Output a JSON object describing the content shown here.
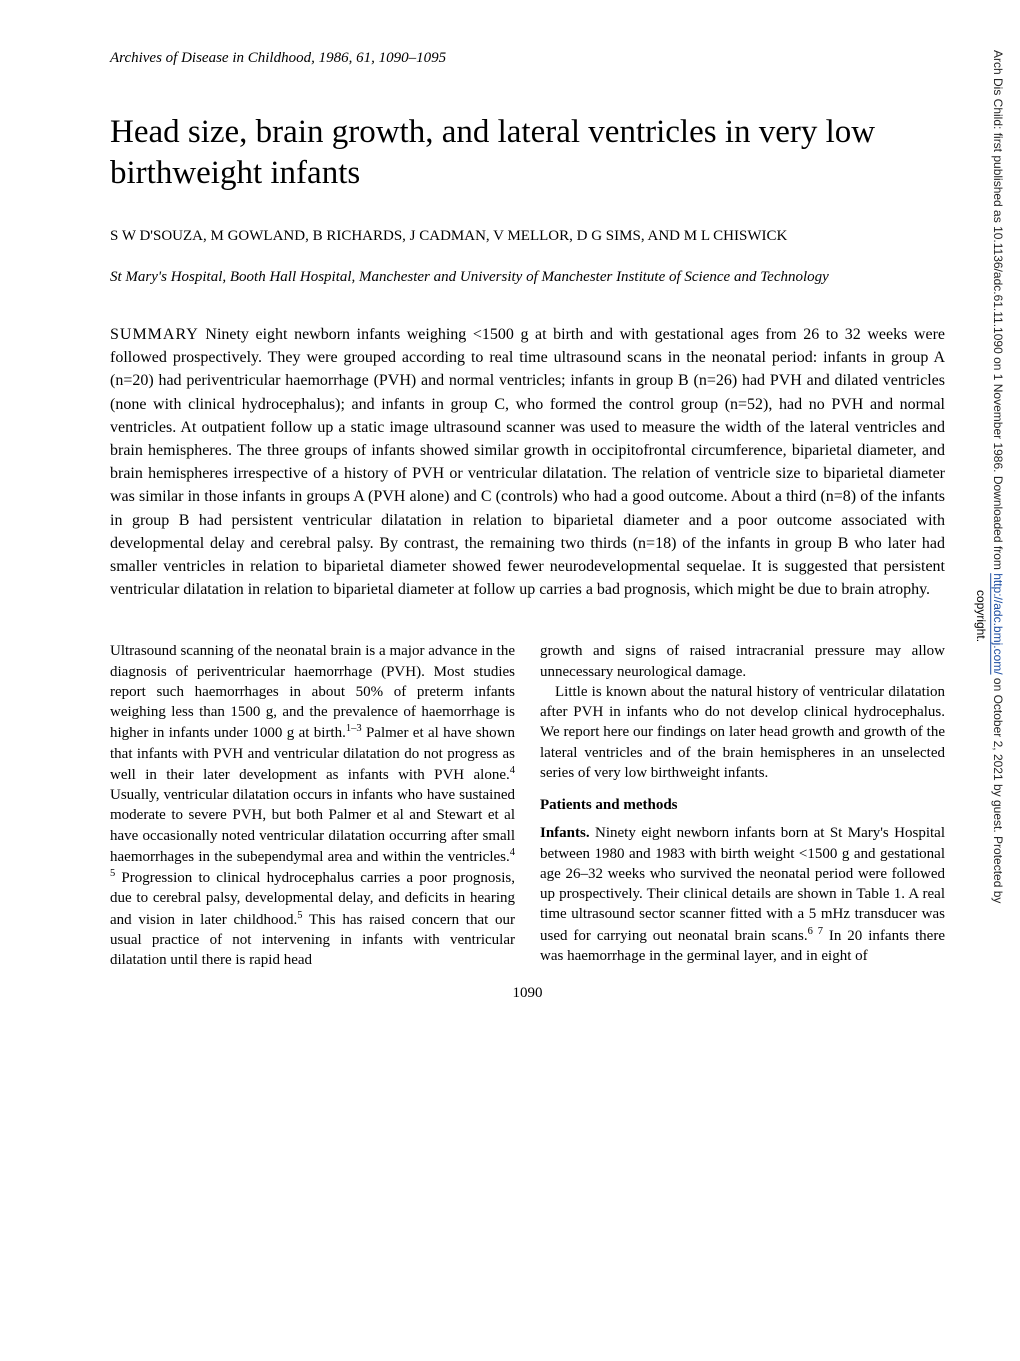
{
  "journal": {
    "citation": "Archives of Disease in Childhood, 1986, 61, 1090–1095"
  },
  "article": {
    "title": "Head size, brain growth, and lateral ventricles in very low birthweight infants",
    "authors": "S W D'SOUZA, M GOWLAND, B RICHARDS, J CADMAN, V MELLOR, D G SIMS, AND M L CHISWICK",
    "affiliation": "St Mary's Hospital, Booth Hall Hospital, Manchester and University of Manchester Institute of Science and Technology"
  },
  "summary": {
    "label": "SUMMARY",
    "text": " Ninety eight newborn infants weighing <1500 g at birth and with gestational ages from 26 to 32 weeks were followed prospectively. They were grouped according to real time ultrasound scans in the neonatal period: infants in group A (n=20) had periventricular haemorrhage (PVH) and normal ventricles; infants in group B (n=26) had PVH and dilated ventricles (none with clinical hydrocephalus); and infants in group C, who formed the control group (n=52), had no PVH and normal ventricles. At outpatient follow up a static image ultrasound scanner was used to measure the width of the lateral ventricles and brain hemispheres. The three groups of infants showed similar growth in occipitofrontal circumference, biparietal diameter, and brain hemispheres irrespective of a history of PVH or ventricular dilatation. The relation of ventricle size to biparietal diameter was similar in those infants in groups A (PVH alone) and C (controls) who had a good outcome. About a third (n=8) of the infants in group B had persistent ventricular dilatation in relation to biparietal diameter and a poor outcome associated with developmental delay and cerebral palsy. By contrast, the remaining two thirds (n=18) of the infants in group B who later had smaller ventricles in relation to biparietal diameter showed fewer neurodevelopmental sequelae. It is suggested that persistent ventricular dilatation in relation to biparietal diameter at follow up carries a bad prognosis, which might be due to brain atrophy."
  },
  "body": {
    "left_col": {
      "p1_pre": "Ultrasound scanning of the neonatal brain is a major advance in the diagnosis of periventricular haemorrhage (PVH). Most studies report such haemorrhages in about 50% of preterm infants weighing less than 1500 g, and the prevalence of haemorrhage is higher in infants under 1000 g at birth.",
      "p1_ref1": "1–3",
      "p1_mid1": " Palmer et al have shown that infants with PVH and ventricular dilatation do not progress as well in their later development as infants with PVH alone.",
      "p1_ref2": "4",
      "p1_mid2": " Usually, ventricular dilatation occurs in infants who have sustained moderate to severe PVH, but both Palmer et al and Stewart et al have occasionally noted ventricular dilatation occurring after small haemorrhages in the subependymal area and within the ventricles.",
      "p1_ref3": "4 5",
      "p1_mid3": " Progression to clinical hydrocephalus carries a poor prognosis, due to cerebral palsy, developmental delay, and deficits in hearing and vision in later childhood.",
      "p1_ref4": "5",
      "p1_post": " This has raised concern that our usual practice of not intervening in infants with ventricular dilatation until there is rapid head"
    },
    "right_col": {
      "p1": "growth and signs of raised intracranial pressure may allow unnecessary neurological damage.",
      "p2": "Little is known about the natural history of ventricular dilatation after PVH in infants who do not develop clinical hydrocephalus. We report here our findings on later head growth and growth of the lateral ventricles and of the brain hemispheres in an unselected series of very low birthweight infants.",
      "heading": "Patients and methods",
      "p3_runin": "Infants.",
      "p3_pre": " Ninety eight newborn infants born at St Mary's Hospital between 1980 and 1983 with birth weight <1500 g and gestational age 26–32 weeks who survived the neonatal period were followed up prospectively. Their clinical details are shown in Table 1. A real time ultrasound sector scanner fitted with a 5 mHz transducer was used for carrying out neonatal brain scans.",
      "p3_ref": "6 7",
      "p3_post": " In 20 infants there was haemorrhage in the germinal layer, and in eight of"
    }
  },
  "page_number": "1090",
  "sidebar": {
    "text_pre": "Arch Dis Child: first published as 10.1136/adc.61.11.1090 on 1 November 1986. Downloaded from ",
    "link_text": "http://adc.bmj.com/",
    "text_post": " on October 2, 2021 by guest. Protected by",
    "copyright": "copyright."
  }
}
